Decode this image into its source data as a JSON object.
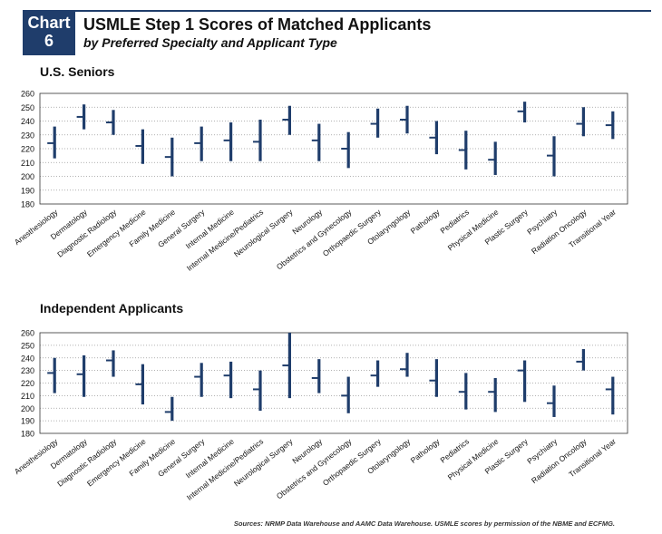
{
  "header": {
    "badge_word": "Chart",
    "badge_number": "6",
    "title": "USMLE Step 1 Scores of Matched Applicants",
    "subtitle": "by Preferred Specialty and Applicant Type"
  },
  "colors": {
    "accent": "#1f3d6b",
    "grid": "#999999"
  },
  "chart_data": [
    {
      "type": "high-low-mean",
      "title": "U.S. Seniors",
      "ylim": [
        180,
        260
      ],
      "yticks": [
        180,
        190,
        200,
        210,
        220,
        230,
        240,
        250,
        260
      ],
      "grid": "dotted horizontal",
      "categories": [
        "Anesthesiology",
        "Dermatology",
        "Diagnostic Radiology",
        "Emergency Medicine",
        "Family Medicine",
        "General Surgery",
        "Internal Medicine",
        "Internal Medicine/Pediatrics",
        "Neurological Surgery",
        "Neurology",
        "Obstetrics and Gynecology",
        "Orthopaedic Surgery",
        "Otolaryngology",
        "Pathology",
        "Pediatrics",
        "Physical Medicine",
        "Plastic Surgery",
        "Psychiatry",
        "Radiation Oncology",
        "Transitional Year"
      ],
      "high": [
        236,
        252,
        248,
        234,
        228,
        236,
        239,
        241,
        251,
        238,
        232,
        249,
        251,
        240,
        233,
        225,
        254,
        229,
        250,
        247
      ],
      "low": [
        213,
        234,
        230,
        209,
        200,
        211,
        211,
        211,
        230,
        211,
        206,
        228,
        231,
        216,
        205,
        201,
        239,
        200,
        229,
        227
      ],
      "mean": [
        224,
        243,
        239,
        222,
        214,
        224,
        226,
        225,
        241,
        226,
        220,
        238,
        241,
        228,
        219,
        212,
        247,
        215,
        238,
        237
      ]
    },
    {
      "type": "high-low-mean",
      "title": "Independent Applicants",
      "ylim": [
        180,
        260
      ],
      "yticks": [
        180,
        190,
        200,
        210,
        220,
        230,
        240,
        250,
        260
      ],
      "grid": "dotted horizontal",
      "categories": [
        "Anesthesiology",
        "Dermatology",
        "Diagnostic Radiology",
        "Emergency Medicine",
        "Family Medicine",
        "General Surgery",
        "Internal Medicine",
        "Internal Medicine/Pediatrics",
        "Neurological Surgery",
        "Neurology",
        "Obstetrics and Gynecology",
        "Orthopaedic Surgery",
        "Otolaryngology",
        "Pathology",
        "Pediatrics",
        "Physical Medicine",
        "Plastic Surgery",
        "Psychiatry",
        "Radiation Oncology",
        "Transitional Year"
      ],
      "high": [
        240,
        242,
        246,
        235,
        209,
        236,
        237,
        230,
        260,
        239,
        225,
        238,
        244,
        239,
        228,
        224,
        238,
        218,
        247,
        225
      ],
      "low": [
        212,
        209,
        225,
        203,
        190,
        209,
        208,
        198,
        208,
        212,
        196,
        217,
        225,
        209,
        199,
        197,
        205,
        193,
        230,
        195
      ],
      "mean": [
        228,
        227,
        238,
        219,
        197,
        225,
        226,
        215,
        234,
        224,
        210,
        226,
        231,
        222,
        213,
        213,
        230,
        204,
        237,
        215
      ]
    }
  ],
  "source": "Sources: NRMP Data Warehouse and AAMC Data Warehouse.  USMLE scores by permission of the NBME and ECFMG."
}
